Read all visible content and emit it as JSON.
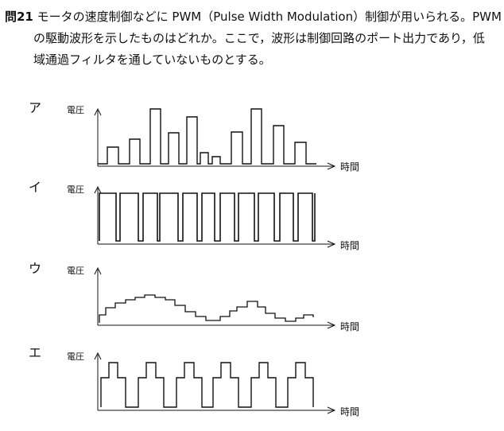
{
  "question": {
    "number": "問21",
    "line1": "モータの速度制御などに PWM（Pulse Width Modulation）制御が用いられる。PWM",
    "line2": "の駆動波形を示したものはどれか。ここで，波形は制御回路のポート出力であり，低",
    "line3": "域通過フィルタを通していないものとする。"
  },
  "choices": [
    {
      "label": "ア",
      "ylabel": "電圧",
      "xlabel": "時間",
      "description": "pulses of equal width, varying amplitude",
      "amplitudes": [
        0.35,
        0.5,
        0.95,
        0.6,
        0.85,
        0.2,
        0.15,
        0.6,
        0.95,
        0.7,
        0.4
      ]
    },
    {
      "label": "イ",
      "ylabel": "電圧",
      "xlabel": "時間",
      "description": "pulses of equal amplitude, varying width",
      "duty": [
        0.9,
        0.75,
        0.55,
        0.8,
        0.85,
        0.25,
        0.55,
        0.15,
        0.85,
        0.85,
        0.75,
        0.85
      ]
    },
    {
      "label": "ウ",
      "ylabel": "電圧",
      "xlabel": "時間",
      "description": "stepped waveform approximating sine",
      "levels": [
        0.25,
        0.38,
        0.45,
        0.5,
        0.55,
        0.48,
        0.4,
        0.28,
        0.15,
        0.08,
        0.15,
        0.3,
        0.38,
        0.25,
        0.18,
        0.1,
        0.18
      ]
    },
    {
      "label": "エ",
      "ylabel": "電圧",
      "xlabel": "時間",
      "description": "stepped rectangular pulse train",
      "pulses": 6
    }
  ]
}
